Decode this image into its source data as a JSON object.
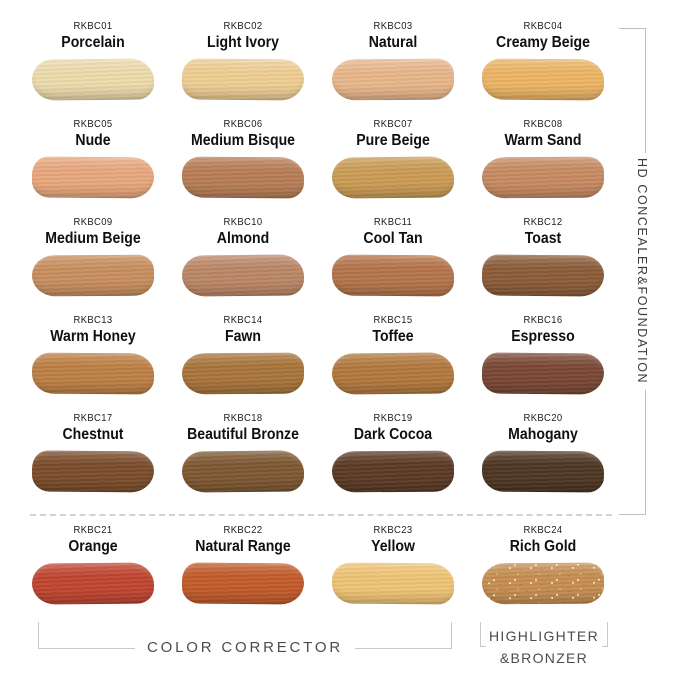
{
  "swatches": [
    {
      "code": "RKBC01",
      "name": "Porcelain",
      "color": "#EDDBAB"
    },
    {
      "code": "RKBC02",
      "name": "Light Ivory",
      "color": "#EFCE93"
    },
    {
      "code": "RKBC03",
      "name": "Natural",
      "color": "#E9B78C"
    },
    {
      "code": "RKBC04",
      "name": "Creamy Beige",
      "color": "#ECB566"
    },
    {
      "code": "RKBC05",
      "name": "Nude",
      "color": "#E9A87E"
    },
    {
      "code": "RKBC06",
      "name": "Medium Bisque",
      "color": "#B87E56"
    },
    {
      "code": "RKBC07",
      "name": "Pure Beige",
      "color": "#CB9C55"
    },
    {
      "code": "RKBC08",
      "name": "Warm Sand",
      "color": "#C78B62"
    },
    {
      "code": "RKBC09",
      "name": "Medium Beige",
      "color": "#C88F5F"
    },
    {
      "code": "RKBC10",
      "name": "Almond",
      "color": "#BC8767"
    },
    {
      "code": "RKBC11",
      "name": "Cool Tan",
      "color": "#B5744B"
    },
    {
      "code": "RKBC12",
      "name": "Toast",
      "color": "#8C5C39"
    },
    {
      "code": "RKBC13",
      "name": "Warm Honey",
      "color": "#BE8045"
    },
    {
      "code": "RKBC14",
      "name": "Fawn",
      "color": "#A9753B"
    },
    {
      "code": "RKBC15",
      "name": "Toffee",
      "color": "#B3793F"
    },
    {
      "code": "RKBC16",
      "name": "Espresso",
      "color": "#7B4835"
    },
    {
      "code": "RKBC17",
      "name": "Chestnut",
      "color": "#7B4D2B"
    },
    {
      "code": "RKBC18",
      "name": "Beautiful Bronze",
      "color": "#7E5832"
    },
    {
      "code": "RKBC19",
      "name": "Dark Cocoa",
      "color": "#5B3A25"
    },
    {
      "code": "RKBC20",
      "name": "Mahogany",
      "color": "#4E3622"
    },
    {
      "code": "RKBC21",
      "name": "Orange",
      "color": "#C04531"
    },
    {
      "code": "RKBC22",
      "name": "Natural Range",
      "color": "#C35B2B"
    },
    {
      "code": "RKBC23",
      "name": "Yellow",
      "color": "#F0C475"
    },
    {
      "code": "RKBC24",
      "name": "Rich Gold",
      "color": "#C68E52"
    }
  ],
  "side_label": "HD CONCEALER&FOUNDATION",
  "groups": {
    "color_corrector": "COLOR CORRECTOR",
    "highlighter_line1": "HIGHLIGHTER",
    "highlighter_line2": "&BRONZER"
  }
}
